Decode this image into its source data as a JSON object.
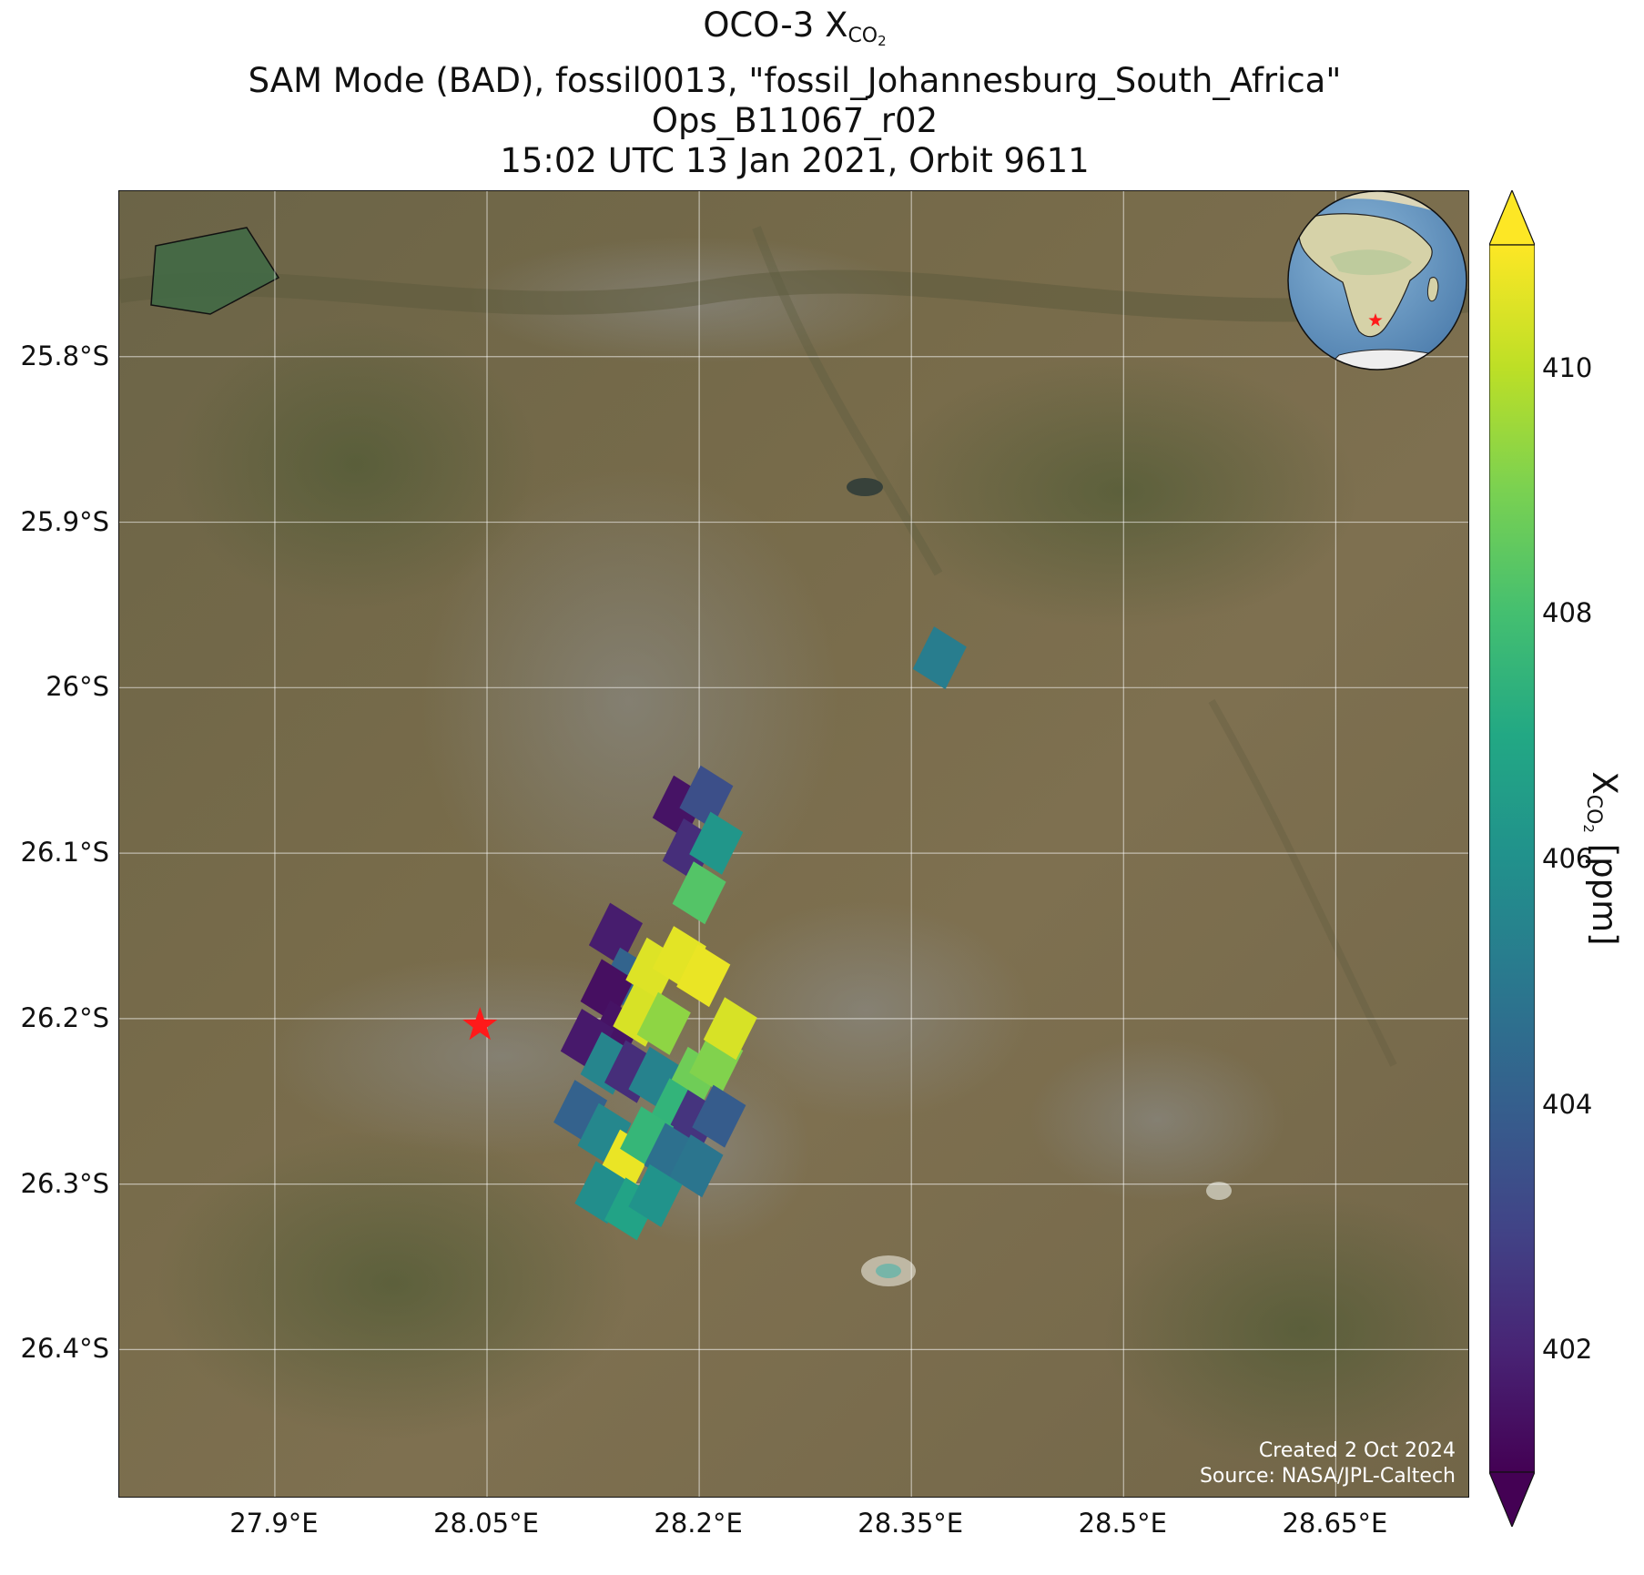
{
  "title": {
    "line1_main": "OCO-3 X",
    "line1_sub": "CO",
    "line1_sub2": "2",
    "line2": "SAM Mode (BAD), fossil0013, \"fossil_Johannesburg_South_Africa\"",
    "line3": "Ops_B11067_r02",
    "line4": "15:02 UTC 13 Jan 2021, Orbit 9611"
  },
  "map": {
    "lon_range": [
      27.79,
      28.745
    ],
    "lat_range": [
      -26.49,
      -25.7
    ],
    "y_ticks": [
      {
        "lat": -25.8,
        "label": "25.8°S"
      },
      {
        "lat": -25.9,
        "label": "25.9°S"
      },
      {
        "lat": -26.0,
        "label": "26°S"
      },
      {
        "lat": -26.1,
        "label": "26.1°S"
      },
      {
        "lat": -26.2,
        "label": "26.2°S"
      },
      {
        "lat": -26.3,
        "label": "26.3°S"
      },
      {
        "lat": -26.4,
        "label": "26.4°S"
      }
    ],
    "x_ticks": [
      {
        "lon": 27.9,
        "label": "27.9°E"
      },
      {
        "lon": 28.05,
        "label": "28.05°E"
      },
      {
        "lon": 28.2,
        "label": "28.2°E"
      },
      {
        "lon": 28.35,
        "label": "28.35°E"
      },
      {
        "lon": 28.5,
        "label": "28.5°E"
      },
      {
        "lon": 28.65,
        "label": "28.65°E"
      }
    ],
    "target": {
      "lon": 28.045,
      "lat": -26.204,
      "marker": "red-star",
      "color": "#ff1a1a"
    },
    "background": "satellite imagery",
    "credits": {
      "created": "Created 2 Oct 2024",
      "source": "Source: NASA/JPL-Caltech"
    },
    "inset_globe": {
      "center_region": "Africa",
      "marker": "red-star"
    }
  },
  "colorbar": {
    "cmap": "viridis",
    "vmin": 401.0,
    "vmax": 411.0,
    "extend": "both",
    "ticks": [
      402,
      404,
      406,
      408,
      410
    ],
    "label_main": "X",
    "label_sub": "CO",
    "label_sub2": "2",
    "label_unit": " [ppm]"
  },
  "chart_data": {
    "type": "map-scatter",
    "units": "ppm",
    "soundings": [
      {
        "lon": 28.37,
        "lat": -25.982,
        "xco2": 405.2
      },
      {
        "lon": 28.186,
        "lat": -26.072,
        "xco2": 401.5
      },
      {
        "lon": 28.205,
        "lat": -26.066,
        "xco2": 403.4
      },
      {
        "lon": 28.193,
        "lat": -26.098,
        "xco2": 402.3
      },
      {
        "lon": 28.212,
        "lat": -26.094,
        "xco2": 406.2
      },
      {
        "lon": 28.2,
        "lat": -26.124,
        "xco2": 408.3
      },
      {
        "lon": 28.141,
        "lat": -26.149,
        "xco2": 401.8
      },
      {
        "lon": 28.148,
        "lat": -26.176,
        "xco2": 404.2
      },
      {
        "lon": 28.135,
        "lat": -26.183,
        "xco2": 401.4
      },
      {
        "lon": 28.167,
        "lat": -26.17,
        "xco2": 410.5
      },
      {
        "lon": 28.186,
        "lat": -26.163,
        "xco2": 410.6
      },
      {
        "lon": 28.203,
        "lat": -26.174,
        "xco2": 410.7
      },
      {
        "lon": 28.141,
        "lat": -26.208,
        "xco2": 401.5
      },
      {
        "lon": 28.158,
        "lat": -26.198,
        "xco2": 410.4
      },
      {
        "lon": 28.175,
        "lat": -26.203,
        "xco2": 409.3
      },
      {
        "lon": 28.121,
        "lat": -26.213,
        "xco2": 401.7
      },
      {
        "lon": 28.135,
        "lat": -26.227,
        "xco2": 405.5
      },
      {
        "lon": 28.152,
        "lat": -26.232,
        "xco2": 402.3
      },
      {
        "lon": 28.169,
        "lat": -26.236,
        "xco2": 405.4
      },
      {
        "lon": 28.196,
        "lat": -26.236,
        "xco2": 408.8
      },
      {
        "lon": 28.212,
        "lat": -26.226,
        "xco2": 409.1
      },
      {
        "lon": 28.222,
        "lat": -26.206,
        "xco2": 410.4
      },
      {
        "lon": 28.116,
        "lat": -26.256,
        "xco2": 404.1
      },
      {
        "lon": 28.133,
        "lat": -26.27,
        "xco2": 405.6
      },
      {
        "lon": 28.183,
        "lat": -26.255,
        "xco2": 407.5
      },
      {
        "lon": 28.196,
        "lat": -26.262,
        "xco2": 402.5
      },
      {
        "lon": 28.214,
        "lat": -26.259,
        "xco2": 403.9
      },
      {
        "lon": 28.148,
        "lat": -26.286,
        "xco2": 410.7
      },
      {
        "lon": 28.163,
        "lat": -26.272,
        "xco2": 407.6
      },
      {
        "lon": 28.18,
        "lat": -26.282,
        "xco2": 404.7
      },
      {
        "lon": 28.198,
        "lat": -26.289,
        "xco2": 404.9
      },
      {
        "lon": 28.131,
        "lat": -26.305,
        "xco2": 405.9
      },
      {
        "lon": 28.152,
        "lat": -26.315,
        "xco2": 406.8
      },
      {
        "lon": 28.169,
        "lat": -26.307,
        "xco2": 406.1
      }
    ]
  }
}
